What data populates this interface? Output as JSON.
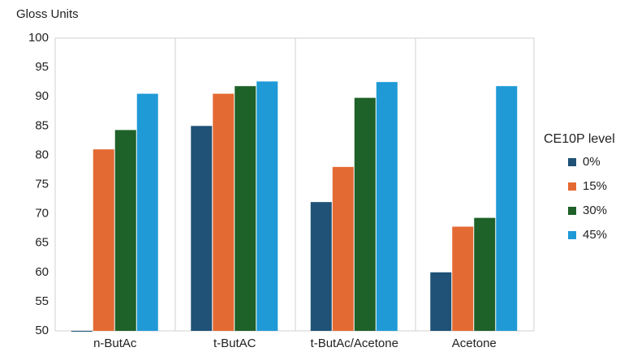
{
  "chart_data": {
    "type": "bar",
    "y_label": "Gloss Units",
    "categories": [
      "n-ButAc",
      "t-ButAC",
      "t-ButAc/Acetone",
      "Acetone"
    ],
    "series": [
      {
        "name": "0%",
        "color": "#1f5276",
        "values": [
          50,
          85,
          72,
          60
        ]
      },
      {
        "name": "15%",
        "color": "#e46a33",
        "values": [
          81,
          90.5,
          78,
          67.8
        ]
      },
      {
        "name": "30%",
        "color": "#1e6129",
        "values": [
          84.3,
          91.8,
          89.8,
          69.3
        ]
      },
      {
        "name": "45%",
        "color": "#1f9ad6",
        "values": [
          90.5,
          92.6,
          92.5,
          91.8
        ]
      }
    ],
    "legend_title": "CE10P level",
    "legend": "right",
    "ylim": [
      50,
      100
    ],
    "yticks": [
      50,
      55,
      60,
      65,
      70,
      75,
      80,
      85,
      90,
      95,
      100
    ],
    "grid": false
  }
}
